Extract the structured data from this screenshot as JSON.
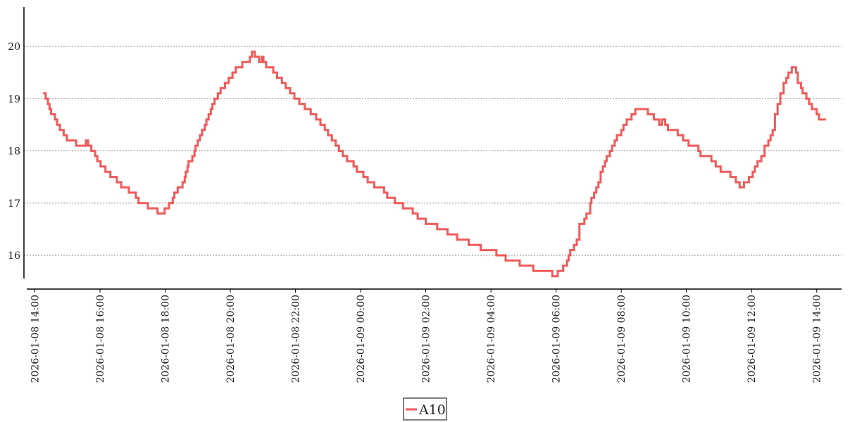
{
  "chart_data": {
    "type": "line",
    "title": "",
    "xlabel": "",
    "ylabel": "",
    "line_style": "step",
    "grid": "horizontal dotted",
    "legend_placement": "bottom-center",
    "ylim": [
      15.35,
      20.75
    ],
    "xlim": [
      "2026-01-08 14:00",
      "2026-01-09 14:20"
    ],
    "yticks": [
      16,
      17,
      18,
      19,
      20
    ],
    "xticks": [
      "2026-01-08 14:00",
      "2026-01-08 16:00",
      "2026-01-08 18:00",
      "2026-01-08 20:00",
      "2026-01-08 22:00",
      "2026-01-09 00:00",
      "2026-01-09 02:00",
      "2026-01-09 04:00",
      "2026-01-09 06:00",
      "2026-01-09 08:00",
      "2026-01-09 10:00",
      "2026-01-09 12:00",
      "2026-01-09 14:00"
    ],
    "series": [
      {
        "name": "A10",
        "color": "#ef5a5a",
        "x": [
          "2026-01-08 14:15",
          "2026-01-08 14:20",
          "2026-01-08 14:24",
          "2026-01-08 14:27",
          "2026-01-08 14:30",
          "2026-01-08 14:37",
          "2026-01-08 14:41",
          "2026-01-08 14:46",
          "2026-01-08 14:53",
          "2026-01-08 14:59",
          "2026-01-08 15:16",
          "2026-01-08 15:34",
          "2026-01-08 15:38",
          "2026-01-08 15:44",
          "2026-01-08 15:51",
          "2026-01-08 15:55",
          "2026-01-08 16:01",
          "2026-01-08 16:10",
          "2026-01-08 16:19",
          "2026-01-08 16:31",
          "2026-01-08 16:39",
          "2026-01-08 16:53",
          "2026-01-08 17:06",
          "2026-01-08 17:11",
          "2026-01-08 17:28",
          "2026-01-08 17:46",
          "2026-01-08 17:59",
          "2026-01-08 18:07",
          "2026-01-08 18:14",
          "2026-01-08 18:17",
          "2026-01-08 18:23",
          "2026-01-08 18:32",
          "2026-01-08 18:36",
          "2026-01-08 18:38",
          "2026-01-08 18:41",
          "2026-01-08 18:43",
          "2026-01-08 18:50",
          "2026-01-08 18:54",
          "2026-01-08 18:56",
          "2026-01-08 19:00",
          "2026-01-08 19:04",
          "2026-01-08 19:08",
          "2026-01-08 19:13",
          "2026-01-08 19:16",
          "2026-01-08 19:20",
          "2026-01-08 19:24",
          "2026-01-08 19:27",
          "2026-01-08 19:31",
          "2026-01-08 19:37",
          "2026-01-08 19:42",
          "2026-01-08 19:50",
          "2026-01-08 19:57",
          "2026-01-08 20:04",
          "2026-01-08 20:10",
          "2026-01-08 20:22",
          "2026-01-08 20:36",
          "2026-01-08 20:40",
          "2026-01-08 20:45",
          "2026-01-08 20:53",
          "2026-01-08 20:58",
          "2026-01-08 21:01",
          "2026-01-08 21:06",
          "2026-01-08 21:19",
          "2026-01-08 21:26",
          "2026-01-08 21:35",
          "2026-01-08 21:42",
          "2026-01-08 21:50",
          "2026-01-08 21:58",
          "2026-01-08 22:07",
          "2026-01-08 22:17",
          "2026-01-08 22:28",
          "2026-01-08 22:38",
          "2026-01-08 22:46",
          "2026-01-08 22:54",
          "2026-01-08 23:00",
          "2026-01-08 23:07",
          "2026-01-08 23:14",
          "2026-01-08 23:20",
          "2026-01-08 23:27",
          "2026-01-08 23:35",
          "2026-01-08 23:47",
          "2026-01-08 23:53",
          "2026-01-09 00:05",
          "2026-01-09 00:13",
          "2026-01-09 00:25",
          "2026-01-09 00:43",
          "2026-01-09 00:49",
          "2026-01-09 01:03",
          "2026-01-09 01:18",
          "2026-01-09 01:36",
          "2026-01-09 01:45",
          "2026-01-09 02:00",
          "2026-01-09 02:21",
          "2026-01-09 02:40",
          "2026-01-09 02:58",
          "2026-01-09 03:19",
          "2026-01-09 03:41",
          "2026-01-09 04:10",
          "2026-01-09 04:27",
          "2026-01-09 04:53",
          "2026-01-09 05:18",
          "2026-01-09 05:53",
          "2026-01-09 06:03",
          "2026-01-09 06:13",
          "2026-01-09 06:20",
          "2026-01-09 06:23",
          "2026-01-09 06:26",
          "2026-01-09 06:33",
          "2026-01-09 06:38",
          "2026-01-09 06:43",
          "2026-01-09 06:52",
          "2026-01-09 06:56",
          "2026-01-09 07:03",
          "2026-01-09 07:05",
          "2026-01-09 07:10",
          "2026-01-09 07:14",
          "2026-01-09 07:18",
          "2026-01-09 07:22",
          "2026-01-09 07:26",
          "2026-01-09 07:30",
          "2026-01-09 07:33",
          "2026-01-09 07:39",
          "2026-01-09 07:43",
          "2026-01-09 07:48",
          "2026-01-09 07:52",
          "2026-01-09 08:00",
          "2026-01-09 08:04",
          "2026-01-09 08:10",
          "2026-01-09 08:19",
          "2026-01-09 08:26",
          "2026-01-09 08:49",
          "2026-01-09 09:00",
          "2026-01-09 09:10",
          "2026-01-09 09:15",
          "2026-01-09 09:21",
          "2026-01-09 09:26",
          "2026-01-09 09:44",
          "2026-01-09 09:54",
          "2026-01-09 10:04",
          "2026-01-09 10:22",
          "2026-01-09 10:26",
          "2026-01-09 10:46",
          "2026-01-09 10:54",
          "2026-01-09 11:03",
          "2026-01-09 11:21",
          "2026-01-09 11:31",
          "2026-01-09 11:38",
          "2026-01-09 11:46",
          "2026-01-09 11:55",
          "2026-01-09 12:02",
          "2026-01-09 12:06",
          "2026-01-09 12:11",
          "2026-01-09 12:18",
          "2026-01-09 12:24",
          "2026-01-09 12:31",
          "2026-01-09 12:35",
          "2026-01-09 12:39",
          "2026-01-09 12:43",
          "2026-01-09 12:48",
          "2026-01-09 12:53",
          "2026-01-09 12:59",
          "2026-01-09 13:04",
          "2026-01-09 13:08",
          "2026-01-09 13:14",
          "2026-01-09 13:22",
          "2026-01-09 13:25",
          "2026-01-09 13:31",
          "2026-01-09 13:34",
          "2026-01-09 13:41",
          "2026-01-09 13:46",
          "2026-01-09 13:51",
          "2026-01-09 14:00",
          "2026-01-09 14:04",
          "2026-01-09 14:17"
        ],
        "y": [
          19.1,
          19.0,
          18.9,
          18.8,
          18.7,
          18.6,
          18.5,
          18.4,
          18.3,
          18.2,
          18.1,
          18.2,
          18.1,
          18.0,
          17.9,
          17.8,
          17.7,
          17.6,
          17.5,
          17.4,
          17.3,
          17.2,
          17.1,
          17.0,
          16.9,
          16.8,
          16.9,
          17.0,
          17.1,
          17.2,
          17.3,
          17.4,
          17.5,
          17.6,
          17.7,
          17.8,
          17.9,
          18.0,
          18.1,
          18.2,
          18.3,
          18.4,
          18.5,
          18.6,
          18.7,
          18.8,
          18.9,
          19.0,
          19.1,
          19.2,
          19.3,
          19.4,
          19.5,
          19.6,
          19.7,
          19.8,
          19.9,
          19.8,
          19.7,
          19.8,
          19.7,
          19.6,
          19.5,
          19.4,
          19.3,
          19.2,
          19.1,
          19.0,
          18.9,
          18.8,
          18.7,
          18.6,
          18.5,
          18.4,
          18.3,
          18.2,
          18.1,
          18.0,
          17.9,
          17.8,
          17.7,
          17.6,
          17.5,
          17.4,
          17.3,
          17.2,
          17.1,
          17.0,
          16.9,
          16.8,
          16.7,
          16.6,
          16.5,
          16.4,
          16.3,
          16.2,
          16.1,
          16.0,
          15.9,
          15.8,
          15.7,
          15.6,
          15.7,
          15.8,
          15.9,
          16.0,
          16.1,
          16.2,
          16.3,
          16.6,
          16.7,
          16.8,
          17.0,
          17.1,
          17.2,
          17.3,
          17.4,
          17.6,
          17.7,
          17.8,
          17.9,
          18.0,
          18.1,
          18.2,
          18.3,
          18.4,
          18.5,
          18.6,
          18.7,
          18.8,
          18.7,
          18.6,
          18.5,
          18.6,
          18.5,
          18.4,
          18.3,
          18.2,
          18.1,
          18.0,
          17.9,
          17.8,
          17.7,
          17.6,
          17.5,
          17.4,
          17.3,
          17.4,
          17.5,
          17.6,
          17.7,
          17.8,
          17.9,
          18.1,
          18.2,
          18.3,
          18.4,
          18.7,
          18.9,
          19.1,
          19.3,
          19.4,
          19.5,
          19.6,
          19.5,
          19.3,
          19.2,
          19.1,
          19.0,
          18.9,
          18.8,
          18.7,
          18.6,
          18.6
        ]
      }
    ]
  }
}
